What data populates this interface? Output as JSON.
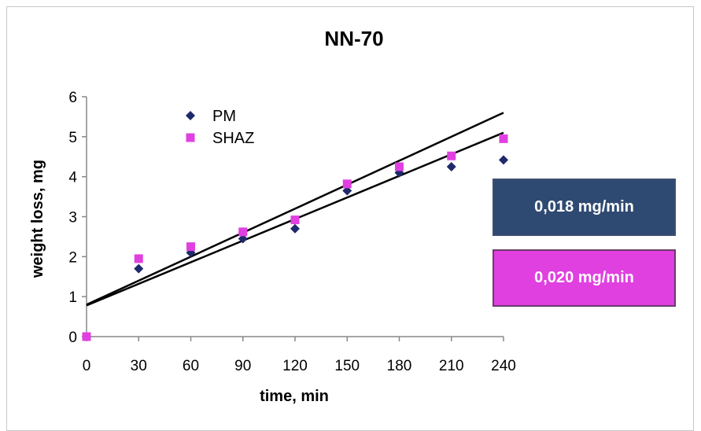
{
  "chart_data": {
    "type": "scatter",
    "title": "NN-70",
    "xlabel": "time, min",
    "ylabel": "weight loss, mg",
    "xlim": [
      0,
      240
    ],
    "ylim": [
      0,
      6
    ],
    "x_ticks": [
      "0",
      "30",
      "60",
      "90",
      "120",
      "150",
      "180",
      "210",
      "240"
    ],
    "y_ticks": [
      "0",
      "1",
      "2",
      "3",
      "4",
      "5",
      "6"
    ],
    "grid": false,
    "legend": "top-left",
    "series": [
      {
        "name": "PM",
        "color": "#1f2a6b",
        "marker": "diamond",
        "x": [
          0,
          30,
          60,
          90,
          120,
          150,
          180,
          210,
          240
        ],
        "y": [
          0,
          1.7,
          2.1,
          2.45,
          2.7,
          3.65,
          4.1,
          4.25,
          4.42
        ],
        "trendline": {
          "slope": 0.018,
          "intercept": 0.78
        }
      },
      {
        "name": "SHAZ",
        "color": "#e040e0",
        "marker": "square",
        "x": [
          0,
          30,
          60,
          90,
          120,
          150,
          180,
          210,
          240
        ],
        "y": [
          0,
          1.95,
          2.25,
          2.62,
          2.92,
          3.82,
          4.25,
          4.52,
          4.95
        ],
        "trendline": {
          "slope": 0.02,
          "intercept": 0.8
        }
      }
    ],
    "annotations": [
      {
        "text": "0,018 mg/min",
        "background": "#2f4a72"
      },
      {
        "text": "0,020 mg/min",
        "background": "#e040e0"
      }
    ]
  }
}
